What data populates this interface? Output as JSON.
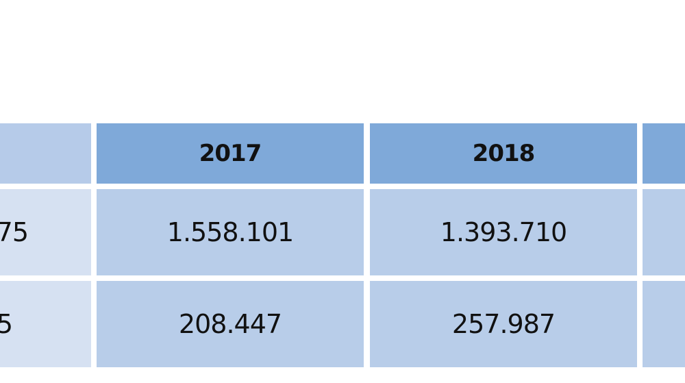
{
  "table": {
    "header": [
      "2017",
      "2018"
    ],
    "rows": [
      [
        "75",
        "1.558.101",
        "1.393.710"
      ],
      [
        "5",
        "208.447",
        "257.987"
      ]
    ]
  }
}
